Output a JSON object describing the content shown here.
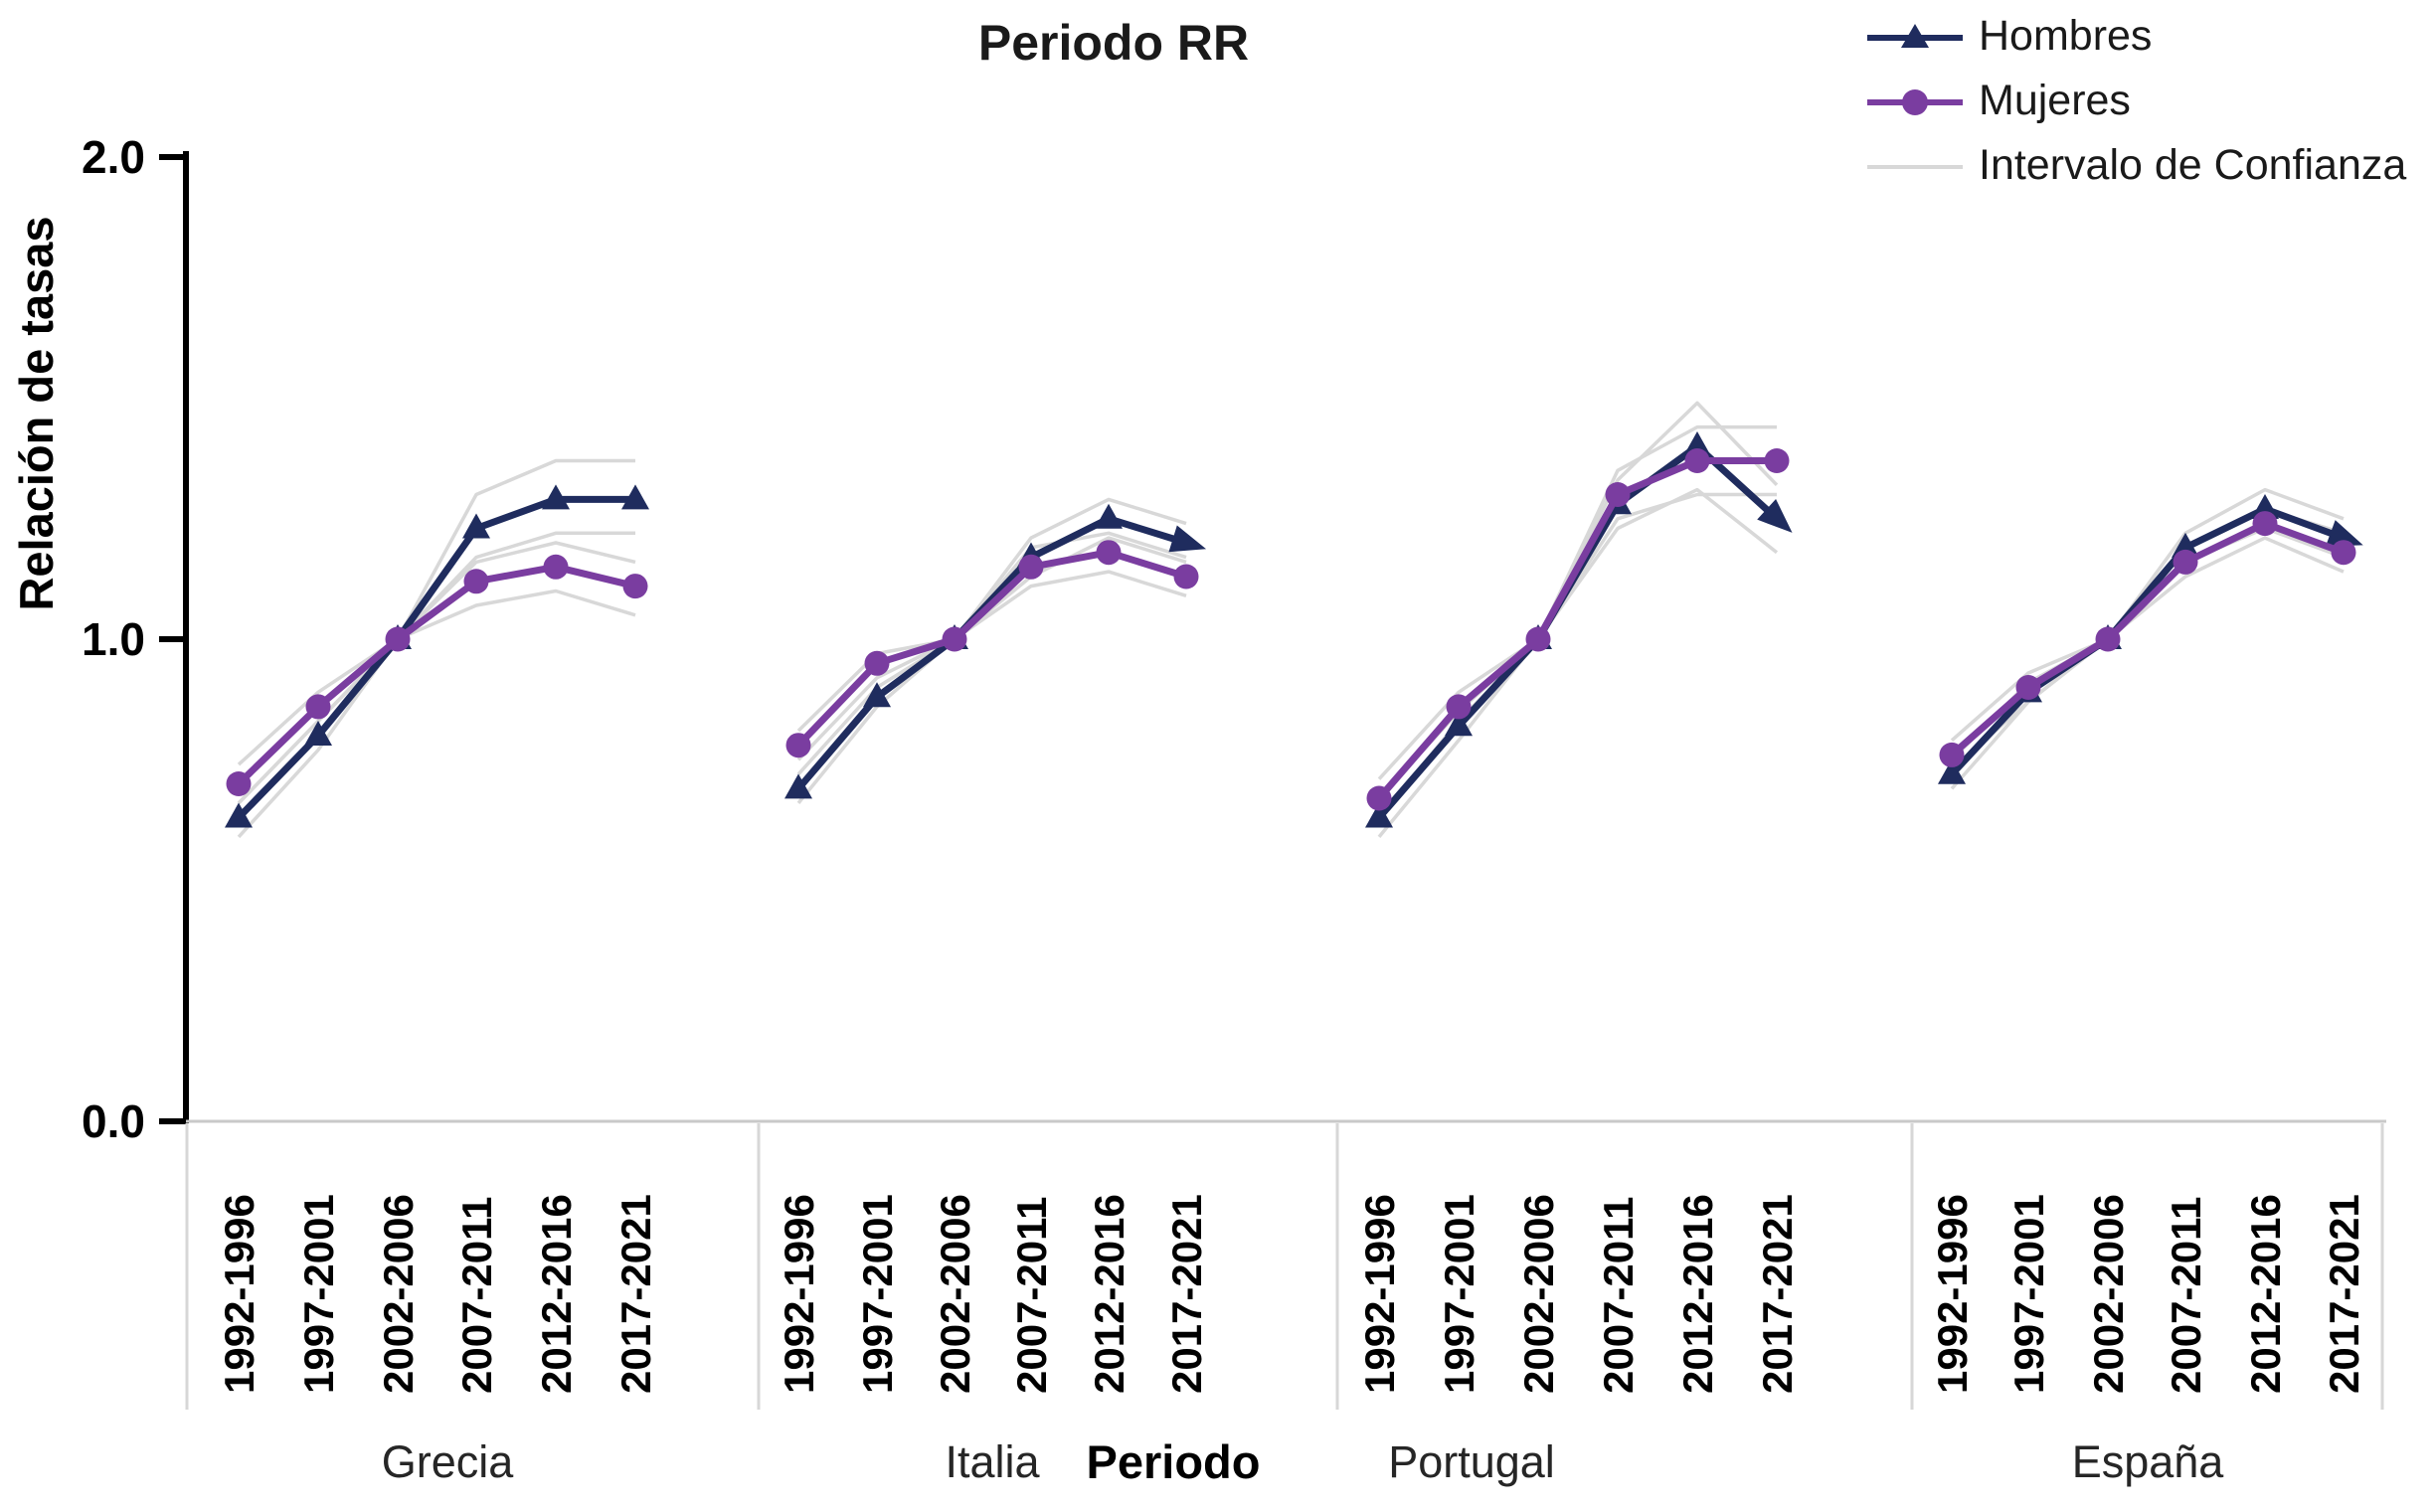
{
  "chart_data": {
    "type": "line",
    "title": "Periodo RR",
    "ylabel": "Relación de tasas",
    "xlabel": "Periodo",
    "ylim": [
      0.0,
      2.0
    ],
    "yticks": [
      "0.0",
      "1.0",
      "2.0"
    ],
    "grid": false,
    "legend_position": "top-right",
    "legend": [
      {
        "label": "Hombres",
        "marker": "triangle"
      },
      {
        "label": "Mujeres",
        "marker": "circle"
      },
      {
        "label": "Intervalo de Confianza",
        "marker": "line"
      }
    ],
    "categories": [
      "1992-1996",
      "1997-2001",
      "2002-2006",
      "2007-2011",
      "2012-2016",
      "2017-2021"
    ],
    "panels": [
      {
        "name": "Grecia",
        "series": [
          {
            "name": "Hombres",
            "values": [
              0.63,
              0.8,
              1.0,
              1.23,
              1.29,
              1.29
            ]
          },
          {
            "name": "Mujeres",
            "values": [
              0.7,
              0.86,
              1.0,
              1.12,
              1.15,
              1.11
            ]
          }
        ],
        "ci": {
          "hombres_upper": [
            0.66,
            0.83,
            1.0,
            1.3,
            1.37,
            1.37
          ],
          "hombres_lower": [
            0.59,
            0.77,
            1.0,
            1.17,
            1.22,
            1.22
          ],
          "mujeres_upper": [
            0.74,
            0.89,
            1.0,
            1.16,
            1.2,
            1.16
          ],
          "mujeres_lower": [
            0.66,
            0.83,
            1.0,
            1.07,
            1.1,
            1.05
          ]
        }
      },
      {
        "name": "Italia",
        "series": [
          {
            "name": "Hombres",
            "values": [
              0.69,
              0.88,
              1.0,
              1.17,
              1.25,
              1.2
            ]
          },
          {
            "name": "Mujeres",
            "values": [
              0.78,
              0.95,
              1.0,
              1.15,
              1.18,
              1.13
            ]
          }
        ],
        "ci": {
          "hombres_upper": [
            0.72,
            0.9,
            1.0,
            1.21,
            1.29,
            1.24
          ],
          "hombres_lower": [
            0.66,
            0.86,
            1.0,
            1.13,
            1.21,
            1.16
          ],
          "mujeres_upper": [
            0.81,
            0.97,
            1.0,
            1.19,
            1.22,
            1.17
          ],
          "mujeres_lower": [
            0.75,
            0.92,
            1.0,
            1.11,
            1.14,
            1.09
          ]
        }
      },
      {
        "name": "Portugal",
        "series": [
          {
            "name": "Hombres",
            "values": [
              0.63,
              0.82,
              1.0,
              1.28,
              1.4,
              1.25
            ]
          },
          {
            "name": "Mujeres",
            "values": [
              0.67,
              0.86,
              1.0,
              1.3,
              1.37,
              1.37
            ]
          }
        ],
        "ci": {
          "hombres_upper": [
            0.67,
            0.85,
            1.0,
            1.33,
            1.49,
            1.32
          ],
          "hombres_lower": [
            0.59,
            0.79,
            1.0,
            1.23,
            1.31,
            1.18
          ],
          "mujeres_upper": [
            0.71,
            0.89,
            1.0,
            1.35,
            1.44,
            1.44
          ],
          "mujeres_lower": [
            0.63,
            0.83,
            1.0,
            1.25,
            1.3,
            1.3
          ]
        }
      },
      {
        "name": "España",
        "series": [
          {
            "name": "Hombres",
            "values": [
              0.72,
              0.89,
              1.0,
              1.19,
              1.27,
              1.21
            ]
          },
          {
            "name": "Mujeres",
            "values": [
              0.76,
              0.9,
              1.0,
              1.16,
              1.24,
              1.18
            ]
          }
        ],
        "ci": {
          "hombres_upper": [
            0.75,
            0.91,
            1.0,
            1.22,
            1.31,
            1.25
          ],
          "hombres_lower": [
            0.69,
            0.87,
            1.0,
            1.16,
            1.23,
            1.17
          ],
          "mujeres_upper": [
            0.79,
            0.93,
            1.0,
            1.19,
            1.27,
            1.22
          ],
          "mujeres_lower": [
            0.73,
            0.87,
            1.0,
            1.13,
            1.21,
            1.14
          ]
        }
      }
    ],
    "colors": {
      "hombres": "#1f2c5e",
      "mujeres": "#7a3da0",
      "ci": "#d8d8d8",
      "axis": "#000000",
      "separator": "#d7d7d7",
      "baseline": "#c9c9c9",
      "text": "#1a1a1a"
    }
  }
}
